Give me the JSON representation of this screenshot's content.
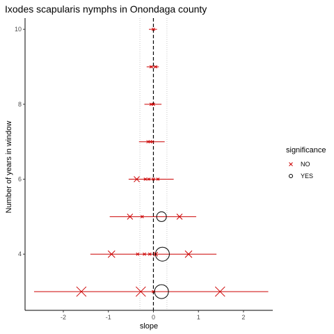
{
  "chart_data": {
    "type": "scatter",
    "title": "Ixodes scapularis nymphs in Onondaga county",
    "xlabel": "slope",
    "ylabel": "Number of years in window",
    "xlim": [
      -2.85,
      2.65
    ],
    "ylim": [
      2.5,
      10.3
    ],
    "x_ticks": [
      -2,
      -1,
      0,
      1,
      2
    ],
    "y_ticks": [
      4,
      6,
      8,
      10
    ],
    "grid": false,
    "reference_lines": {
      "zero_line": 0,
      "dotted_lines": [
        -0.3,
        0.3
      ]
    },
    "legend": {
      "title": "significance",
      "position": "right",
      "entries": [
        {
          "label": "NO",
          "marker": "x",
          "color": "#cc0000"
        },
        {
          "label": "YES",
          "marker": "circle",
          "color": "#000000"
        }
      ]
    },
    "ranges": [
      {
        "years": 10,
        "min": -0.1,
        "max": 0.08
      },
      {
        "years": 9,
        "min": -0.15,
        "max": 0.12
      },
      {
        "years": 8,
        "min": -0.2,
        "max": 0.18
      },
      {
        "years": 7,
        "min": -0.32,
        "max": 0.25
      },
      {
        "years": 6,
        "min": -0.55,
        "max": 0.45
      },
      {
        "years": 5,
        "min": -0.97,
        "max": 0.95
      },
      {
        "years": 4,
        "min": -1.4,
        "max": 1.4
      },
      {
        "years": 3,
        "min": -2.65,
        "max": 2.55
      }
    ],
    "points": [
      {
        "years": 10,
        "slope": 0.0,
        "significance": "NO",
        "size": 2
      },
      {
        "years": 9,
        "slope": -0.05,
        "significance": "NO",
        "size": 2
      },
      {
        "years": 9,
        "slope": 0.05,
        "significance": "NO",
        "size": 2
      },
      {
        "years": 8,
        "slope": -0.05,
        "significance": "NO",
        "size": 2
      },
      {
        "years": 8,
        "slope": 0.0,
        "significance": "NO",
        "size": 2
      },
      {
        "years": 7,
        "slope": -0.12,
        "significance": "NO",
        "size": 2
      },
      {
        "years": 7,
        "slope": -0.07,
        "significance": "NO",
        "size": 2
      },
      {
        "years": 7,
        "slope": -0.02,
        "significance": "NO",
        "size": 2
      },
      {
        "years": 6,
        "slope": -0.37,
        "significance": "NO",
        "size": 4
      },
      {
        "years": 6,
        "slope": -0.18,
        "significance": "NO",
        "size": 2
      },
      {
        "years": 6,
        "slope": -0.1,
        "significance": "NO",
        "size": 2
      },
      {
        "years": 6,
        "slope": 0.0,
        "significance": "NO",
        "size": 2
      },
      {
        "years": 6,
        "slope": 0.1,
        "significance": "NO",
        "size": 2
      },
      {
        "years": 5,
        "slope": -0.52,
        "significance": "NO",
        "size": 4
      },
      {
        "years": 5,
        "slope": -0.25,
        "significance": "NO",
        "size": 2
      },
      {
        "years": 5,
        "slope": 0.18,
        "significance": "YES",
        "size": 6
      },
      {
        "years": 5,
        "slope": 0.58,
        "significance": "NO",
        "size": 4
      },
      {
        "years": 4,
        "slope": -0.93,
        "significance": "NO",
        "size": 5
      },
      {
        "years": 4,
        "slope": -0.35,
        "significance": "NO",
        "size": 2
      },
      {
        "years": 4,
        "slope": -0.2,
        "significance": "NO",
        "size": 2
      },
      {
        "years": 4,
        "slope": -0.08,
        "significance": "NO",
        "size": 2
      },
      {
        "years": 4,
        "slope": 0.05,
        "significance": "NO",
        "size": 3
      },
      {
        "years": 4,
        "slope": 0.2,
        "significance": "YES",
        "size": 9
      },
      {
        "years": 4,
        "slope": 0.78,
        "significance": "NO",
        "size": 5
      },
      {
        "years": 3,
        "slope": -1.6,
        "significance": "NO",
        "size": 7
      },
      {
        "years": 3,
        "slope": -0.28,
        "significance": "NO",
        "size": 7
      },
      {
        "years": 3,
        "slope": 0.0,
        "significance": "NO",
        "size": 2
      },
      {
        "years": 3,
        "slope": 0.18,
        "significance": "YES",
        "size": 9
      },
      {
        "years": 3,
        "slope": 1.48,
        "significance": "NO",
        "size": 7
      }
    ]
  }
}
